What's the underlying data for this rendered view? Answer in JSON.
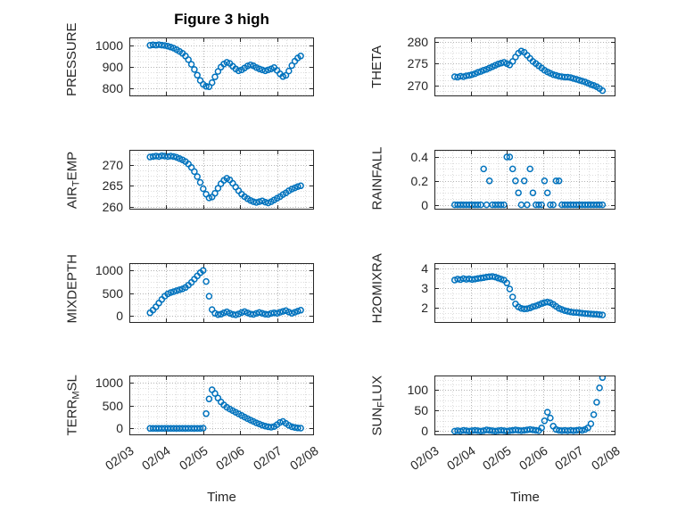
{
  "figure": {
    "title": "Figure 3 high",
    "xlabel": "Time",
    "marker_color": "#0072BD",
    "axis_color": "#262626",
    "grid_color": "#b3b3b3",
    "minor_grid_color": "#dcdcdc",
    "background": "#ffffff"
  },
  "chart_data": {
    "type": "scatter",
    "marker": "o",
    "layout": "4 rows x 2 columns",
    "grid": "on, dotted, with minor grid",
    "xlim": [
      0,
      5
    ],
    "x_unit": "days since 02/03",
    "x_ticks": {
      "values": [
        0,
        1,
        2,
        3,
        4,
        5
      ],
      "labels": [
        "02/03",
        "02/04",
        "02/05",
        "02/06",
        "02/07",
        "02/08"
      ]
    },
    "x": [
      0.56,
      0.64,
      0.72,
      0.8,
      0.88,
      0.96,
      1.04,
      1.12,
      1.2,
      1.28,
      1.36,
      1.44,
      1.52,
      1.6,
      1.68,
      1.76,
      1.84,
      1.92,
      2,
      2.08,
      2.16,
      2.24,
      2.32,
      2.4,
      2.48,
      2.56,
      2.64,
      2.72,
      2.8,
      2.88,
      2.96,
      3.04,
      3.12,
      3.2,
      3.28,
      3.36,
      3.44,
      3.52,
      3.6,
      3.68,
      3.76,
      3.84,
      3.92,
      4,
      4.08,
      4.16,
      4.24,
      4.32,
      4.4,
      4.48,
      4.56,
      4.64
    ],
    "subplots": [
      {
        "name": "PRESSURE",
        "ylabel_pre": "PRESSURE",
        "ylabel_sub": "",
        "ylabel_post": "",
        "yticks": [
          800,
          900,
          1000
        ],
        "ylim": [
          765,
          1035
        ],
        "values": [
          999,
          1001,
          1000,
          1002,
          1000,
          998,
          995,
          991,
          986,
          979,
          971,
          962,
          950,
          933,
          912,
          888,
          862,
          838,
          820,
          811,
          809,
          828,
          854,
          879,
          899,
          913,
          921,
          916,
          903,
          891,
          882,
          886,
          895,
          904,
          909,
          905,
          897,
          891,
          886,
          882,
          886,
          891,
          897,
          884,
          868,
          856,
          861,
          881,
          906,
          926,
          941,
          950
        ]
      },
      {
        "name": "THETA",
        "ylabel_pre": "THETA",
        "ylabel_sub": "",
        "ylabel_post": "",
        "yticks": [
          270,
          275,
          280
        ],
        "ylim": [
          267.5,
          281
        ],
        "values": [
          272,
          271.9,
          272.1,
          272,
          272.2,
          272.3,
          272.5,
          272.7,
          273,
          273.2,
          273.5,
          273.7,
          274,
          274.3,
          274.6,
          274.9,
          275.1,
          275.3,
          275,
          274.7,
          275.5,
          276.5,
          277.4,
          277.9,
          277.6,
          276.9,
          276.2,
          275.5,
          275,
          274.5,
          274,
          273.5,
          273.1,
          272.8,
          272.5,
          272.3,
          272.1,
          272,
          271.9,
          271.9,
          271.8,
          271.6,
          271.4,
          271.2,
          271,
          270.8,
          270.5,
          270.2,
          270,
          269.7,
          269.3,
          268.8
        ]
      },
      {
        "name": "AIR_TEMP",
        "ylabel_pre": "AIR",
        "ylabel_sub": "T",
        "ylabel_post": "EMP",
        "yticks": [
          260,
          265,
          270
        ],
        "ylim": [
          259.3,
          273.6
        ],
        "values": [
          271.9,
          272,
          272.1,
          272,
          272.2,
          272.1,
          272,
          272.1,
          272,
          271.8,
          271.5,
          271.2,
          270.8,
          270.2,
          269.4,
          268.4,
          267.2,
          265.8,
          264.3,
          263,
          262.1,
          262.3,
          263.2,
          264.4,
          265.5,
          266.3,
          266.8,
          266.4,
          265.6,
          264.7,
          263.8,
          263,
          262.4,
          261.9,
          261.5,
          261.2,
          261,
          261.2,
          261.4,
          261.1,
          260.9,
          261.2,
          261.6,
          262,
          262.4,
          262.9,
          263.3,
          263.8,
          264.2,
          264.5,
          264.8,
          265
        ]
      },
      {
        "name": "RAINFALL",
        "ylabel_pre": "RAINFALL",
        "ylabel_sub": "",
        "ylabel_post": "",
        "yticks": [
          0,
          0.2,
          0.4
        ],
        "ylim": [
          -0.04,
          0.46
        ],
        "values": [
          0,
          0,
          0,
          0,
          0,
          0,
          0,
          0,
          0,
          0,
          0.3,
          0,
          0.2,
          0,
          0,
          0,
          0,
          0,
          0.4,
          0.4,
          0.3,
          0.2,
          0.1,
          0,
          0.2,
          0,
          0.3,
          0.1,
          0,
          0,
          0,
          0.2,
          0.1,
          0,
          0,
          0.2,
          0.2,
          0,
          0,
          0,
          0,
          0,
          0,
          0,
          0,
          0,
          0,
          0,
          0,
          0,
          0,
          0
        ]
      },
      {
        "name": "MIXDEPTH",
        "ylabel_pre": "MIXDEPTH",
        "ylabel_sub": "",
        "ylabel_post": "",
        "yticks": [
          0,
          500,
          1000
        ],
        "ylim": [
          -150,
          1150
        ],
        "values": [
          70,
          130,
          200,
          280,
          360,
          430,
          480,
          510,
          530,
          550,
          570,
          590,
          620,
          670,
          730,
          800,
          870,
          940,
          990,
          750,
          430,
          140,
          60,
          30,
          40,
          70,
          90,
          60,
          35,
          25,
          45,
          75,
          95,
          70,
          45,
          35,
          55,
          75,
          60,
          40,
          35,
          55,
          70,
          60,
          80,
          100,
          115,
          85,
          60,
          80,
          105,
          125
        ]
      },
      {
        "name": "H2OMIXRA",
        "ylabel_pre": "H2OMIXRA",
        "ylabel_sub": "",
        "ylabel_post": "",
        "yticks": [
          2,
          3,
          4
        ],
        "ylim": [
          1.25,
          4.25
        ],
        "values": [
          3.4,
          3.45,
          3.42,
          3.47,
          3.44,
          3.46,
          3.43,
          3.45,
          3.48,
          3.5,
          3.52,
          3.55,
          3.57,
          3.58,
          3.55,
          3.5,
          3.45,
          3.4,
          3.25,
          2.95,
          2.55,
          2.2,
          2.05,
          1.98,
          1.95,
          1.96,
          2,
          2.06,
          2.1,
          2.16,
          2.22,
          2.27,
          2.3,
          2.26,
          2.18,
          2.08,
          1.98,
          1.92,
          1.87,
          1.83,
          1.8,
          1.78,
          1.77,
          1.75,
          1.74,
          1.72,
          1.71,
          1.7,
          1.69,
          1.68,
          1.66,
          1.65
        ]
      },
      {
        "name": "TERR_MSL",
        "ylabel_pre": "TERR",
        "ylabel_sub": "M",
        "ylabel_post": "SL",
        "yticks": [
          0,
          500,
          1000
        ],
        "ylim": [
          -150,
          1150
        ],
        "values": [
          0,
          0,
          0,
          0,
          0,
          0,
          0,
          0,
          0,
          0,
          0,
          0,
          0,
          0,
          0,
          0,
          0,
          0,
          5,
          320,
          640,
          840,
          760,
          660,
          575,
          510,
          460,
          420,
          385,
          350,
          315,
          280,
          245,
          210,
          180,
          150,
          120,
          95,
          70,
          50,
          35,
          25,
          40,
          80,
          130,
          150,
          110,
          65,
          35,
          20,
          10,
          5
        ]
      },
      {
        "name": "SUN_FLUX",
        "ylabel_pre": "SUN",
        "ylabel_sub": "F",
        "ylabel_post": "LUX",
        "yticks": [
          0,
          50,
          100
        ],
        "ylim": [
          -10,
          135
        ],
        "values": [
          0,
          1,
          0,
          2,
          1,
          0,
          1,
          2,
          1,
          0,
          1,
          3,
          2,
          1,
          0,
          1,
          2,
          1,
          0,
          1,
          2,
          3,
          2,
          1,
          2,
          3,
          4,
          3,
          2,
          1,
          8,
          25,
          46,
          32,
          12,
          4,
          2,
          1,
          2,
          1,
          2,
          1,
          2,
          3,
          2,
          4,
          8,
          18,
          40,
          70,
          105,
          130
        ]
      }
    ]
  }
}
